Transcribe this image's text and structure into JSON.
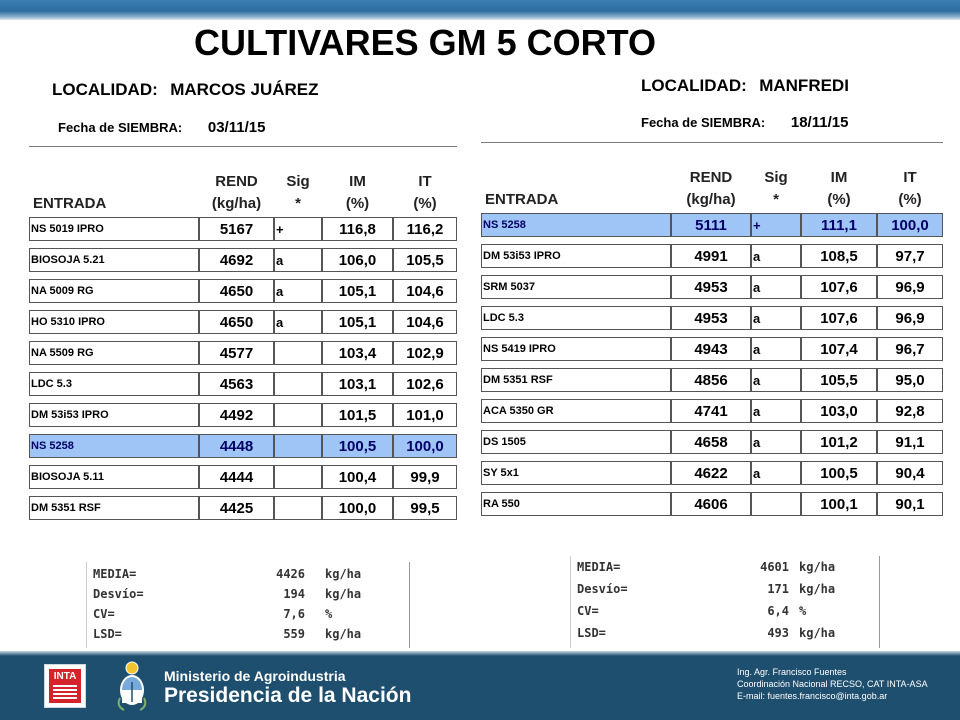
{
  "title": "CULTIVARES GM 5 CORTO",
  "headers": {
    "entrada": "ENTRADA",
    "rend_1": "REND",
    "rend_2": "(kg/ha)",
    "sig_1": "Sig",
    "sig_2": "*",
    "im_1": "IM",
    "im_2": "(%)",
    "it_1": "IT",
    "it_2": "(%)"
  },
  "left": {
    "localidad_label": "LOCALIDAD:",
    "localidad": "MARCOS JUÁREZ",
    "fecha_label": "Fecha de SIEMBRA:",
    "fecha": "03/11/15",
    "rows": [
      {
        "name": "NS 5019 IPRO",
        "rend": "5167",
        "sig": "+",
        "im": "116,8",
        "it": "116,2"
      },
      {
        "name": "BIOSOJA 5.21",
        "rend": "4692",
        "sig": "a",
        "im": "106,0",
        "it": "105,5"
      },
      {
        "name": "NA 5009 RG",
        "rend": "4650",
        "sig": "a",
        "im": "105,1",
        "it": "104,6"
      },
      {
        "name": "HO 5310 IPRO",
        "rend": "4650",
        "sig": "a",
        "im": "105,1",
        "it": "104,6"
      },
      {
        "name": "NA 5509 RG",
        "rend": "4577",
        "sig": "",
        "im": "103,4",
        "it": "102,9"
      },
      {
        "name": "LDC 5.3",
        "rend": "4563",
        "sig": "",
        "im": "103,1",
        "it": "102,6"
      },
      {
        "name": "DM 53i53 IPRO",
        "rend": "4492",
        "sig": "",
        "im": "101,5",
        "it": "101,0"
      },
      {
        "name": "NS 5258",
        "rend": "4448",
        "sig": "",
        "im": "100,5",
        "it": "100,0",
        "highlight": true
      },
      {
        "name": "BIOSOJA 5.11",
        "rend": "4444",
        "sig": "",
        "im": "100,4",
        "it": "99,9"
      },
      {
        "name": "DM 5351 RSF",
        "rend": "4425",
        "sig": "",
        "im": "100,0",
        "it": "99,5"
      }
    ],
    "stats": [
      {
        "label": "MEDIA=",
        "value": "4426",
        "unit": "kg/ha"
      },
      {
        "label": "Desvío=",
        "value": "194",
        "unit": "kg/ha"
      },
      {
        "label": "CV=",
        "value": "7,6",
        "unit": "%"
      },
      {
        "label": "LSD=",
        "value": "559",
        "unit": "kg/ha"
      }
    ]
  },
  "right": {
    "localidad_label": "LOCALIDAD:",
    "localidad": "MANFREDI",
    "fecha_label": "Fecha de SIEMBRA:",
    "fecha": "18/11/15",
    "rows": [
      {
        "name": "NS 5258",
        "rend": "5111",
        "sig": "+",
        "im": "111,1",
        "it": "100,0",
        "highlight": true
      },
      {
        "name": "DM 53i53 IPRO",
        "rend": "4991",
        "sig": "a",
        "im": "108,5",
        "it": "97,7"
      },
      {
        "name": "SRM 5037",
        "rend": "4953",
        "sig": "a",
        "im": "107,6",
        "it": "96,9"
      },
      {
        "name": "LDC 5.3",
        "rend": "4953",
        "sig": "a",
        "im": "107,6",
        "it": "96,9"
      },
      {
        "name": "NS 5419 IPRO",
        "rend": "4943",
        "sig": "a",
        "im": "107,4",
        "it": "96,7"
      },
      {
        "name": "DM 5351 RSF",
        "rend": "4856",
        "sig": "a",
        "im": "105,5",
        "it": "95,0"
      },
      {
        "name": "ACA 5350 GR",
        "rend": "4741",
        "sig": "a",
        "im": "103,0",
        "it": "92,8"
      },
      {
        "name": "DS 1505",
        "rend": "4658",
        "sig": "a",
        "im": "101,2",
        "it": "91,1"
      },
      {
        "name": "SY 5x1",
        "rend": "4622",
        "sig": "a",
        "im": "100,5",
        "it": "90,4"
      },
      {
        "name": "RA 550",
        "rend": "4606",
        "sig": "",
        "im": "100,1",
        "it": "90,1"
      }
    ],
    "stats": [
      {
        "label": "MEDIA=",
        "value": "4601",
        "unit": "kg/ha"
      },
      {
        "label": "Desvío=",
        "value": "171",
        "unit": "kg/ha"
      },
      {
        "label": "CV=",
        "value": "6,4",
        "unit": "%"
      },
      {
        "label": "LSD=",
        "value": "493",
        "unit": "kg/ha"
      }
    ]
  },
  "footer": {
    "inta": "INTA",
    "ministerio": "Ministerio de Agroindustria",
    "presidencia": "Presidencia de la Nación",
    "credit_1": "Ing. Agr. Francisco Fuentes",
    "credit_2": "Coordinación Nacional RECSO, CAT INTA-ASA",
    "credit_3": "E-mail: fuentes.francisco@inta.gob.ar"
  },
  "colors": {
    "highlight_row": "#9ec5f5",
    "footer_bg": "#1f4f6f",
    "top_bar": "#2d6d9f"
  }
}
